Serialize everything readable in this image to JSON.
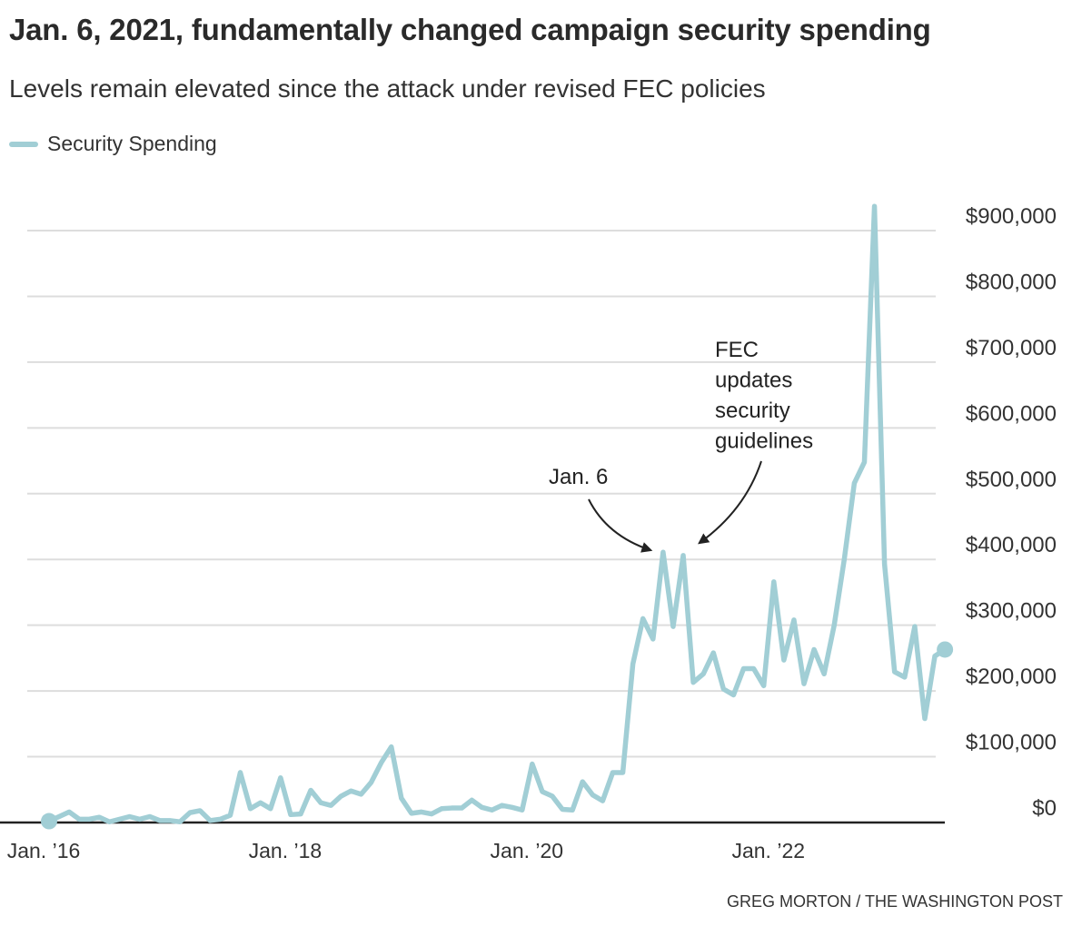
{
  "title": "Jan. 6, 2021, fundamentally changed campaign security spending",
  "subtitle": "Levels remain elevated since the attack under revised FEC policies",
  "credit": "GREG MORTON / THE WASHINGTON POST",
  "colors": {
    "line": "#a1ced5",
    "grid": "#dddddd",
    "axis": "#222222",
    "annotation": "#222222"
  },
  "chart_data": {
    "type": "line",
    "title": "Jan. 6, 2021, fundamentally changed campaign security spending",
    "subtitle": "Levels remain elevated since the attack under revised FEC policies",
    "xlabel": "",
    "ylabel": "",
    "x_range": [
      "2016-01",
      "2023-06"
    ],
    "ylim": [
      0,
      900000
    ],
    "grid": true,
    "y_axis_position": "right",
    "legend": {
      "position": "top-left",
      "entries": [
        "Security Spending"
      ]
    },
    "x_ticks": [
      {
        "label": "Jan. ’16",
        "value": "2016-01"
      },
      {
        "label": "Jan. ’18",
        "value": "2018-01"
      },
      {
        "label": "Jan. ’20",
        "value": "2020-01"
      },
      {
        "label": "Jan. ’22",
        "value": "2022-01"
      }
    ],
    "y_ticks": [
      {
        "label": "$0",
        "value": 0
      },
      {
        "label": "$100,000",
        "value": 100000
      },
      {
        "label": "$200,000",
        "value": 200000
      },
      {
        "label": "$300,000",
        "value": 300000
      },
      {
        "label": "$400,000",
        "value": 400000
      },
      {
        "label": "$500,000",
        "value": 500000
      },
      {
        "label": "$600,000",
        "value": 600000
      },
      {
        "label": "$700,000",
        "value": 700000
      },
      {
        "label": "$800,000",
        "value": 800000
      },
      {
        "label": "$900,000",
        "value": 900000
      }
    ],
    "series": [
      {
        "name": "Security Spending",
        "start": "2016-01",
        "frequency": "monthly",
        "values": [
          2000,
          9000,
          16000,
          5000,
          5000,
          8000,
          1000,
          5000,
          9000,
          5000,
          9000,
          3000,
          3000,
          1000,
          15000,
          18000,
          3000,
          5000,
          11000,
          76000,
          21000,
          30000,
          21000,
          68000,
          12000,
          13000,
          49000,
          30000,
          26000,
          40000,
          48000,
          43000,
          61000,
          91000,
          115000,
          37000,
          14000,
          16000,
          13000,
          21000,
          22000,
          22000,
          34000,
          23000,
          19000,
          26000,
          23000,
          19000,
          89000,
          47000,
          40000,
          20000,
          19000,
          62000,
          42000,
          33000,
          76000,
          76000,
          241000,
          310000,
          279000,
          411000,
          298000,
          406000,
          213000,
          226000,
          258000,
          203000,
          194000,
          234000,
          234000,
          208000,
          366000,
          247000,
          308000,
          211000,
          263000,
          226000,
          300000,
          400000,
          516000,
          548000,
          937000,
          393000,
          229000,
          221000,
          298000,
          158000,
          253000,
          263000
        ]
      }
    ],
    "annotations": [
      {
        "text": "Jan. 6",
        "target": "2021-01"
      },
      {
        "text": "FEC updates security guidelines",
        "lines": [
          "FEC",
          "updates",
          "security",
          "guidelines"
        ],
        "target": "2021-04"
      }
    ]
  }
}
